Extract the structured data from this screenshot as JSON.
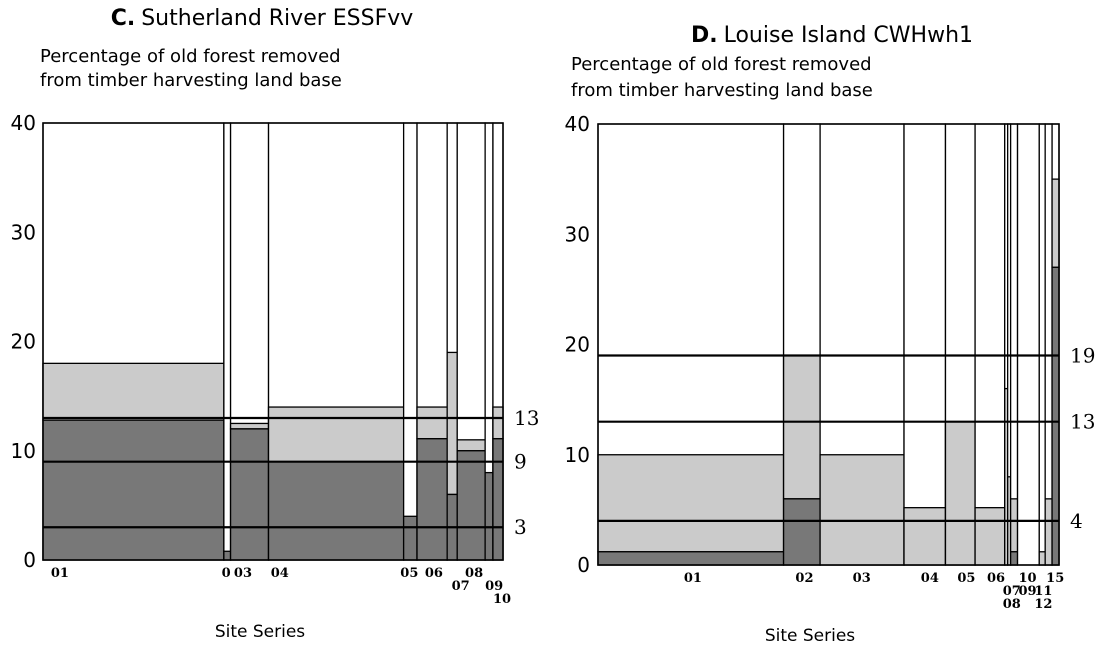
{
  "colors": {
    "dark": "#787878",
    "light": "#cbcbcb",
    "background": "#ffffff",
    "stroke": "#000000"
  },
  "chart_data": [
    {
      "type": "bar",
      "variant": "variable-width stacked bar (mosaic)",
      "title_letter": "C.",
      "title_text": "Sutherland River ESSFvv",
      "ylabel_lines": [
        "Percentage of old forest removed",
        "from timber harvesting land base"
      ],
      "xlabel": "Site Series",
      "ylim": [
        0,
        40
      ],
      "yticks": [
        0,
        10,
        20,
        30,
        40
      ],
      "reference_lines": [
        {
          "value": 13,
          "label": "13"
        },
        {
          "value": 9,
          "label": "9"
        },
        {
          "value": 3,
          "label": "3"
        }
      ],
      "categories": [
        {
          "label": "01",
          "width": 16.2,
          "dark": 12.8,
          "light": 18
        },
        {
          "label": "0",
          "width": 0.6,
          "dark": 0.8,
          "light": 0.8
        },
        {
          "label": "03",
          "width": 3.4,
          "dark": 12,
          "light": 12.5
        },
        {
          "label": "04",
          "width": 12.1,
          "dark": 9,
          "light": 14
        },
        {
          "label": "05",
          "width": 1.2,
          "dark": 4,
          "light": 4
        },
        {
          "label": "06",
          "width": 2.7,
          "dark": 11.1,
          "light": 14
        },
        {
          "label": "07",
          "width": 0.9,
          "dark": 6,
          "light": 19
        },
        {
          "label": "08",
          "width": 2.5,
          "dark": 10,
          "light": 11
        },
        {
          "label": "09",
          "width": 0.7,
          "dark": 8,
          "light": 8
        },
        {
          "label": "10",
          "width": 0.9,
          "dark": 11.1,
          "light": 14
        }
      ],
      "category_labels": [
        {
          "text": "01",
          "x": 0.7,
          "row": 0
        },
        {
          "text": "0",
          "x": 16.0,
          "row": 0
        },
        {
          "text": "03",
          "x": 17.1,
          "row": 0
        },
        {
          "text": "04",
          "x": 20.4,
          "row": 0
        },
        {
          "text": "05",
          "x": 32.0,
          "row": 0
        },
        {
          "text": "06",
          "x": 34.2,
          "row": 0
        },
        {
          "text": "07",
          "x": 36.6,
          "row": 1
        },
        {
          "text": "08",
          "x": 37.8,
          "row": 0
        },
        {
          "text": "09",
          "x": 39.6,
          "row": 1
        },
        {
          "text": "10",
          "x": 40.3,
          "row": 2
        }
      ]
    },
    {
      "type": "bar",
      "variant": "variable-width stacked bar (mosaic)",
      "title_letter": "D.",
      "title_text": "Louise Island CWHwh1",
      "ylabel_lines": [
        "Percentage of old forest removed",
        "from timber harvesting land base"
      ],
      "xlabel": "Site Series",
      "ylim": [
        0,
        40
      ],
      "yticks": [
        0,
        10,
        20,
        30,
        40
      ],
      "reference_lines": [
        {
          "value": 19,
          "label": "19"
        },
        {
          "value": 13,
          "label": "13"
        },
        {
          "value": 4,
          "label": "4"
        }
      ],
      "categories": [
        {
          "label": "01",
          "width": 18.8,
          "dark": 1.2,
          "light": 10
        },
        {
          "label": "02",
          "width": 3.7,
          "dark": 6,
          "light": 19
        },
        {
          "label": "03",
          "width": 8.5,
          "dark": 0,
          "light": 10
        },
        {
          "label": "04",
          "width": 4.2,
          "dark": 0,
          "light": 5.2
        },
        {
          "label": "05",
          "width": 3,
          "dark": 0,
          "light": 13
        },
        {
          "label": "06",
          "width": 3,
          "dark": 0,
          "light": 5.2
        },
        {
          "label": "07",
          "width": 0.3,
          "dark": 0,
          "light": 16
        },
        {
          "label": "08",
          "width": 0.3,
          "dark": 0,
          "light": 8
        },
        {
          "label": "09",
          "width": 0.7,
          "dark": 1.2,
          "light": 6
        },
        {
          "label": "10",
          "width": 2.2,
          "dark": 0,
          "light": 0
        },
        {
          "label": "11",
          "width": 0.6,
          "dark": 0,
          "light": 1.2
        },
        {
          "label": "12",
          "width": 0.7,
          "dark": 0,
          "light": 6
        },
        {
          "label": "15",
          "width": 0.7,
          "dark": 27,
          "light": 35
        }
      ],
      "category_labels": [
        {
          "text": "01",
          "x": 8.7,
          "row": 0
        },
        {
          "text": "02",
          "x": 20.0,
          "row": 0
        },
        {
          "text": "03",
          "x": 25.8,
          "row": 0
        },
        {
          "text": "04",
          "x": 32.7,
          "row": 0
        },
        {
          "text": "05",
          "x": 36.4,
          "row": 0
        },
        {
          "text": "06",
          "x": 39.4,
          "row": 0
        },
        {
          "text": "07",
          "x": 41.0,
          "row": 1
        },
        {
          "text": "08",
          "x": 41.0,
          "row": 2
        },
        {
          "text": "10",
          "x": 42.6,
          "row": 0
        },
        {
          "text": "09",
          "x": 42.6,
          "row": 1
        },
        {
          "text": "11",
          "x": 44.2,
          "row": 1
        },
        {
          "text": "12",
          "x": 44.2,
          "row": 2
        },
        {
          "text": "15",
          "x": 45.4,
          "row": 0
        }
      ]
    }
  ]
}
